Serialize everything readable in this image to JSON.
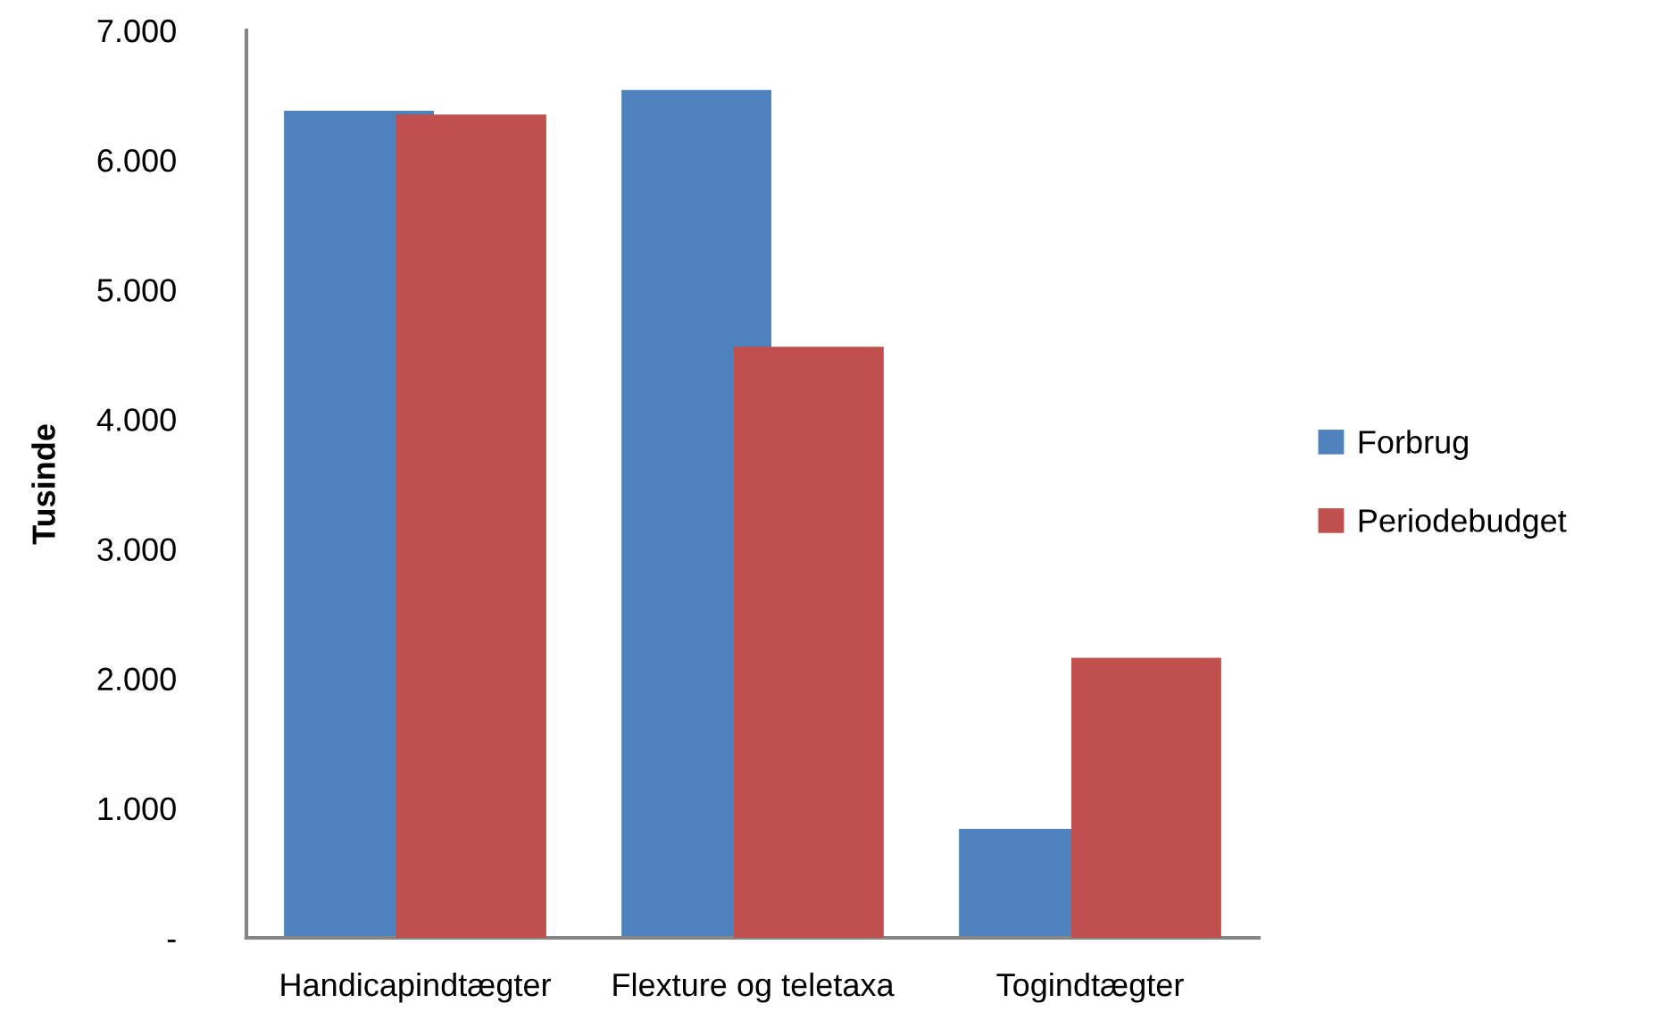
{
  "chart_data": {
    "type": "bar",
    "ylabel": "Tusinde",
    "categories": [
      "Handicapindtægter",
      "Flexture og teletaxa",
      "Togindtægter"
    ],
    "series": [
      {
        "name": "Forbrug",
        "color": "#4f81bd",
        "values": [
          6380,
          6540,
          840
        ]
      },
      {
        "name": "Periodebudget",
        "color": "#c0504d",
        "values": [
          6350,
          4560,
          2160
        ]
      }
    ],
    "ylim": [
      0,
      7000
    ],
    "yticks": [
      {
        "value": 0,
        "label": "-"
      },
      {
        "value": 1000,
        "label": "1.000"
      },
      {
        "value": 2000,
        "label": "2.000"
      },
      {
        "value": 3000,
        "label": "3.000"
      },
      {
        "value": 4000,
        "label": "4.000"
      },
      {
        "value": 5000,
        "label": "5.000"
      },
      {
        "value": 6000,
        "label": "6.000"
      },
      {
        "value": 7000,
        "label": "7.000"
      }
    ],
    "legend": "right",
    "grid": false
  }
}
